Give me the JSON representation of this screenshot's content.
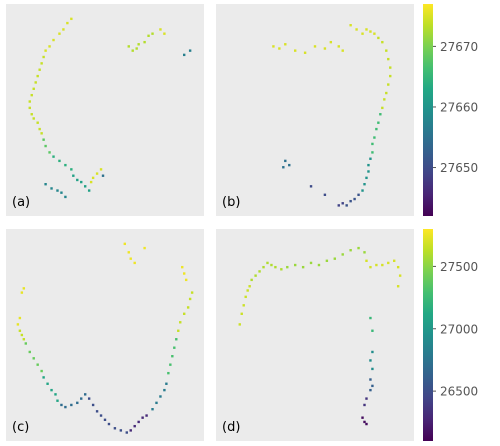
{
  "chart_data": [
    {
      "type": "scatter",
      "panel": "top-left",
      "label": "(a)",
      "grid": false,
      "colormap": "viridis",
      "clim": [
        27642,
        27677
      ],
      "segments": [
        {
          "c": 27675,
          "pts": [
            [
              0.2,
              0.78
            ],
            [
              0.22,
              0.8
            ],
            [
              0.24,
              0.83
            ],
            [
              0.27,
              0.86
            ],
            [
              0.29,
              0.88
            ],
            [
              0.31,
              0.91
            ],
            [
              0.33,
              0.93
            ]
          ]
        },
        {
          "c": 27674,
          "pts": [
            [
              0.19,
              0.75
            ],
            [
              0.18,
              0.72
            ],
            [
              0.17,
              0.69
            ],
            [
              0.16,
              0.66
            ],
            [
              0.15,
              0.63
            ],
            [
              0.14,
              0.6
            ],
            [
              0.13,
              0.57
            ],
            [
              0.12,
              0.54
            ],
            [
              0.12,
              0.51
            ],
            [
              0.13,
              0.48
            ],
            [
              0.14,
              0.46
            ],
            [
              0.16,
              0.44
            ],
            [
              0.17,
              0.41
            ],
            [
              0.18,
              0.39
            ]
          ]
        },
        {
          "c": 27668,
          "pts": [
            [
              0.19,
              0.36
            ],
            [
              0.2,
              0.33
            ],
            [
              0.22,
              0.3
            ]
          ]
        },
        {
          "c": 27664,
          "pts": [
            [
              0.24,
              0.28
            ],
            [
              0.27,
              0.26
            ],
            [
              0.3,
              0.24
            ],
            [
              0.33,
              0.22
            ]
          ]
        },
        {
          "c": 27662,
          "pts": [
            [
              0.34,
              0.19
            ],
            [
              0.36,
              0.17
            ],
            [
              0.38,
              0.16
            ],
            [
              0.4,
              0.14
            ],
            [
              0.42,
              0.12
            ]
          ]
        },
        {
          "c": 27675,
          "pts": [
            [
              0.43,
              0.16
            ],
            [
              0.44,
              0.18
            ],
            [
              0.46,
              0.2
            ],
            [
              0.48,
              0.22
            ]
          ]
        },
        {
          "c": 27658,
          "pts": [
            [
              0.2,
              0.15
            ],
            [
              0.23,
              0.13
            ],
            [
              0.26,
              0.12
            ],
            [
              0.28,
              0.11
            ],
            [
              0.3,
              0.09
            ]
          ]
        },
        {
          "c": 27655,
          "pts": [
            [
              0.49,
              0.19
            ]
          ]
        },
        {
          "c": 27673,
          "pts": [
            [
              0.62,
              0.8
            ],
            [
              0.64,
              0.78
            ],
            [
              0.66,
              0.79
            ],
            [
              0.67,
              0.81
            ],
            [
              0.7,
              0.82
            ],
            [
              0.72,
              0.85
            ],
            [
              0.74,
              0.86
            ]
          ]
        },
        {
          "c": 27675,
          "pts": [
            [
              0.78,
              0.88
            ],
            [
              0.8,
              0.86
            ]
          ]
        },
        {
          "c": 27657,
          "pts": [
            [
              0.9,
              0.76
            ],
            [
              0.93,
              0.78
            ]
          ]
        }
      ]
    },
    {
      "type": "scatter",
      "panel": "top-right",
      "label": "(b)",
      "grid": false,
      "colormap": "viridis",
      "clim": [
        27642,
        27677
      ],
      "segments": [
        {
          "c": 27675,
          "pts": [
            [
              0.29,
              0.8
            ],
            [
              0.32,
              0.79
            ],
            [
              0.35,
              0.81
            ],
            [
              0.4,
              0.78
            ],
            [
              0.45,
              0.77
            ],
            [
              0.5,
              0.8
            ],
            [
              0.55,
              0.79
            ],
            [
              0.58,
              0.82
            ],
            [
              0.62,
              0.8
            ],
            [
              0.64,
              0.78
            ],
            [
              0.68,
              0.9
            ],
            [
              0.71,
              0.88
            ],
            [
              0.74,
              0.86
            ],
            [
              0.76,
              0.88
            ],
            [
              0.78,
              0.87
            ],
            [
              0.8,
              0.86
            ]
          ]
        },
        {
          "c": 27674,
          "pts": [
            [
              0.82,
              0.84
            ],
            [
              0.84,
              0.82
            ],
            [
              0.86,
              0.78
            ],
            [
              0.87,
              0.74
            ],
            [
              0.88,
              0.7
            ],
            [
              0.88,
              0.66
            ],
            [
              0.87,
              0.62
            ],
            [
              0.86,
              0.58
            ],
            [
              0.85,
              0.55
            ],
            [
              0.84,
              0.51
            ]
          ]
        },
        {
          "c": 27666,
          "pts": [
            [
              0.83,
              0.48
            ],
            [
              0.82,
              0.44
            ],
            [
              0.81,
              0.41
            ],
            [
              0.8,
              0.37
            ],
            [
              0.79,
              0.34
            ],
            [
              0.79,
              0.3
            ]
          ]
        },
        {
          "c": 27660,
          "pts": [
            [
              0.78,
              0.27
            ],
            [
              0.77,
              0.24
            ],
            [
              0.77,
              0.21
            ],
            [
              0.76,
              0.18
            ],
            [
              0.75,
              0.15
            ],
            [
              0.74,
              0.12
            ]
          ]
        },
        {
          "c": 27651,
          "pts": [
            [
              0.72,
              0.1
            ],
            [
              0.7,
              0.08
            ],
            [
              0.68,
              0.07
            ],
            [
              0.66,
              0.05
            ]
          ]
        },
        {
          "c": 27655,
          "pts": [
            [
              0.35,
              0.26
            ],
            [
              0.37,
              0.24
            ],
            [
              0.34,
              0.23
            ]
          ]
        },
        {
          "c": 27650,
          "pts": [
            [
              0.48,
              0.14
            ],
            [
              0.55,
              0.1
            ]
          ]
        },
        {
          "c": 27649,
          "pts": [
            [
              0.64,
              0.06
            ],
            [
              0.62,
              0.05
            ]
          ]
        }
      ]
    },
    {
      "type": "scatter",
      "panel": "bottom-left",
      "label": "(c)",
      "grid": false,
      "colormap": "viridis",
      "clim": [
        26100,
        27800
      ],
      "segments": [
        {
          "c": 27740,
          "pts": [
            [
              0.08,
              0.7
            ],
            [
              0.09,
              0.72
            ],
            [
              0.06,
              0.55
            ],
            [
              0.07,
              0.58
            ]
          ]
        },
        {
          "c": 27650,
          "pts": [
            [
              0.07,
              0.52
            ],
            [
              0.08,
              0.5
            ],
            [
              0.09,
              0.48
            ]
          ]
        },
        {
          "c": 27400,
          "pts": [
            [
              0.1,
              0.46
            ],
            [
              0.12,
              0.42
            ],
            [
              0.14,
              0.39
            ],
            [
              0.16,
              0.36
            ],
            [
              0.18,
              0.33
            ]
          ]
        },
        {
          "c": 27100,
          "pts": [
            [
              0.19,
              0.3
            ],
            [
              0.21,
              0.27
            ],
            [
              0.23,
              0.24
            ],
            [
              0.25,
              0.22
            ],
            [
              0.26,
              0.19
            ]
          ]
        },
        {
          "c": 26700,
          "pts": [
            [
              0.28,
              0.17
            ],
            [
              0.3,
              0.16
            ],
            [
              0.33,
              0.17
            ],
            [
              0.36,
              0.18
            ],
            [
              0.38,
              0.2
            ],
            [
              0.4,
              0.22
            ]
          ]
        },
        {
          "c": 26500,
          "pts": [
            [
              0.42,
              0.2
            ],
            [
              0.44,
              0.17
            ],
            [
              0.46,
              0.14
            ],
            [
              0.48,
              0.12
            ],
            [
              0.5,
              0.1
            ],
            [
              0.52,
              0.08
            ],
            [
              0.55,
              0.06
            ],
            [
              0.58,
              0.05
            ],
            [
              0.61,
              0.04
            ]
          ]
        },
        {
          "c": 26300,
          "pts": [
            [
              0.63,
              0.05
            ],
            [
              0.65,
              0.07
            ],
            [
              0.67,
              0.09
            ],
            [
              0.69,
              0.11
            ],
            [
              0.71,
              0.12
            ]
          ]
        },
        {
          "c": 26800,
          "pts": [
            [
              0.74,
              0.15
            ],
            [
              0.76,
              0.18
            ],
            [
              0.78,
              0.21
            ],
            [
              0.8,
              0.24
            ],
            [
              0.81,
              0.27
            ]
          ]
        },
        {
          "c": 27300,
          "pts": [
            [
              0.82,
              0.32
            ],
            [
              0.83,
              0.36
            ],
            [
              0.84,
              0.4
            ],
            [
              0.85,
              0.44
            ],
            [
              0.86,
              0.48
            ]
          ]
        },
        {
          "c": 27650,
          "pts": [
            [
              0.87,
              0.52
            ],
            [
              0.88,
              0.56
            ],
            [
              0.9,
              0.6
            ],
            [
              0.92,
              0.63
            ],
            [
              0.93,
              0.67
            ],
            [
              0.94,
              0.7
            ]
          ]
        },
        {
          "c": 27760,
          "pts": [
            [
              0.91,
              0.76
            ],
            [
              0.9,
              0.79
            ],
            [
              0.89,
              0.82
            ],
            [
              0.6,
              0.93
            ],
            [
              0.62,
              0.89
            ],
            [
              0.63,
              0.86
            ],
            [
              0.65,
              0.84
            ],
            [
              0.7,
              0.91
            ]
          ]
        }
      ]
    },
    {
      "type": "scatter",
      "panel": "bottom-right",
      "label": "(d)",
      "grid": false,
      "colormap": "viridis",
      "clim": [
        26100,
        27750
      ],
      "segments": [
        {
          "c": 27620,
          "pts": [
            [
              0.12,
              0.55
            ],
            [
              0.13,
              0.6
            ],
            [
              0.14,
              0.64
            ],
            [
              0.15,
              0.68
            ],
            [
              0.16,
              0.71
            ],
            [
              0.17,
              0.73
            ]
          ]
        },
        {
          "c": 27550,
          "pts": [
            [
              0.18,
              0.76
            ],
            [
              0.2,
              0.78
            ],
            [
              0.22,
              0.8
            ],
            [
              0.24,
              0.82
            ],
            [
              0.26,
              0.84
            ],
            [
              0.28,
              0.83
            ],
            [
              0.3,
              0.82
            ],
            [
              0.33,
              0.81
            ]
          ]
        },
        {
          "c": 27500,
          "pts": [
            [
              0.36,
              0.82
            ],
            [
              0.4,
              0.83
            ],
            [
              0.44,
              0.82
            ],
            [
              0.48,
              0.84
            ],
            [
              0.52,
              0.83
            ],
            [
              0.56,
              0.85
            ],
            [
              0.6,
              0.86
            ],
            [
              0.64,
              0.88
            ],
            [
              0.68,
              0.9
            ],
            [
              0.72,
              0.91
            ],
            [
              0.75,
              0.89
            ]
          ]
        },
        {
          "c": 27650,
          "pts": [
            [
              0.76,
              0.85
            ],
            [
              0.78,
              0.82
            ],
            [
              0.81,
              0.83
            ],
            [
              0.84,
              0.83
            ],
            [
              0.87,
              0.84
            ],
            [
              0.9,
              0.85
            ],
            [
              0.92,
              0.82
            ],
            [
              0.93,
              0.78
            ],
            [
              0.92,
              0.73
            ]
          ]
        },
        {
          "c": 27200,
          "pts": [
            [
              0.78,
              0.58
            ],
            [
              0.79,
              0.52
            ]
          ]
        },
        {
          "c": 26900,
          "pts": [
            [
              0.79,
              0.42
            ],
            [
              0.78,
              0.38
            ],
            [
              0.79,
              0.34
            ]
          ]
        },
        {
          "c": 26600,
          "pts": [
            [
              0.78,
              0.29
            ],
            [
              0.79,
              0.26
            ],
            [
              0.78,
              0.24
            ]
          ]
        },
        {
          "c": 26350,
          "pts": [
            [
              0.76,
              0.2
            ],
            [
              0.75,
              0.17
            ]
          ]
        },
        {
          "c": 26150,
          "pts": [
            [
              0.74,
              0.11
            ],
            [
              0.75,
              0.09
            ],
            [
              0.76,
              0.08
            ]
          ]
        }
      ]
    }
  ],
  "colorbars": [
    {
      "row": "top",
      "clim": [
        27642,
        27677
      ],
      "ticks": [
        27650,
        27660,
        27670
      ],
      "tick_labels": [
        "27650",
        "27660",
        "27670"
      ]
    },
    {
      "row": "bottom",
      "clim": [
        26100,
        27800
      ],
      "ticks": [
        26500,
        27000,
        27500
      ],
      "tick_labels": [
        "26500",
        "27000",
        "27500"
      ]
    }
  ],
  "colors": {
    "panel_background": "#ebebeb",
    "tick_text": "#555555"
  }
}
